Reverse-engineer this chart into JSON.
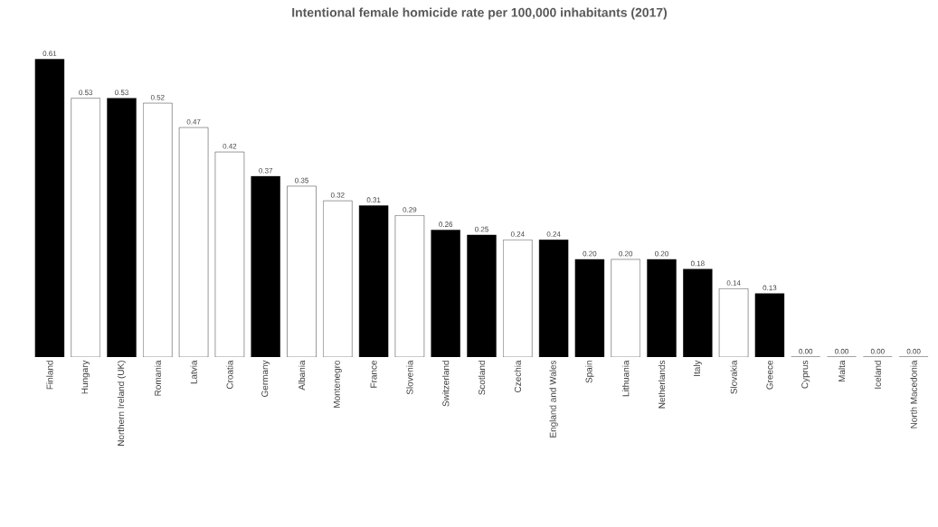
{
  "chart_data": {
    "type": "bar",
    "title": "Intentional female homicide rate per 100,000 inhabitants (2017)",
    "categories": [
      "Finland",
      "Hungary",
      "Northern Ireland (UK)",
      "Romania",
      "Latvia",
      "Croatia",
      "Germany",
      "Albania",
      "Montenegro",
      "France",
      "Slovenia",
      "Switzerland",
      "Scotland",
      "Czechia",
      "England and Wales",
      "Spain",
      "Lithuania",
      "Netherlands",
      "Italy",
      "Slovakia",
      "Greece",
      "Cyprus",
      "Malta",
      "Iceland",
      "North Macedonia"
    ],
    "values": [
      0.61,
      0.53,
      0.53,
      0.52,
      0.47,
      0.42,
      0.37,
      0.35,
      0.32,
      0.31,
      0.29,
      0.26,
      0.25,
      0.24,
      0.24,
      0.2,
      0.2,
      0.2,
      0.18,
      0.14,
      0.13,
      0.0,
      0.0,
      0.0,
      0.0
    ],
    "value_labels": [
      "0.61",
      "0.53",
      "0.53",
      "0.52",
      "0.47",
      "0.42",
      "0.37",
      "0.35",
      "0.32",
      "0.31",
      "0.29",
      "0.26",
      "0.25",
      "0.24",
      "0.24",
      "0.20",
      "0.20",
      "0.20",
      "0.18",
      "0.14",
      "0.13",
      "0.00",
      "0.00",
      "0.00",
      "0.00"
    ],
    "colors": [
      "#000000",
      "#ffffff",
      "#000000",
      "#ffffff",
      "#ffffff",
      "#ffffff",
      "#000000",
      "#ffffff",
      "#ffffff",
      "#000000",
      "#ffffff",
      "#000000",
      "#000000",
      "#ffffff",
      "#000000",
      "#000000",
      "#ffffff",
      "#000000",
      "#000000",
      "#ffffff",
      "#000000",
      "#000000",
      "#000000",
      "#000000",
      "#000000"
    ],
    "tick_labels": "x"
  }
}
